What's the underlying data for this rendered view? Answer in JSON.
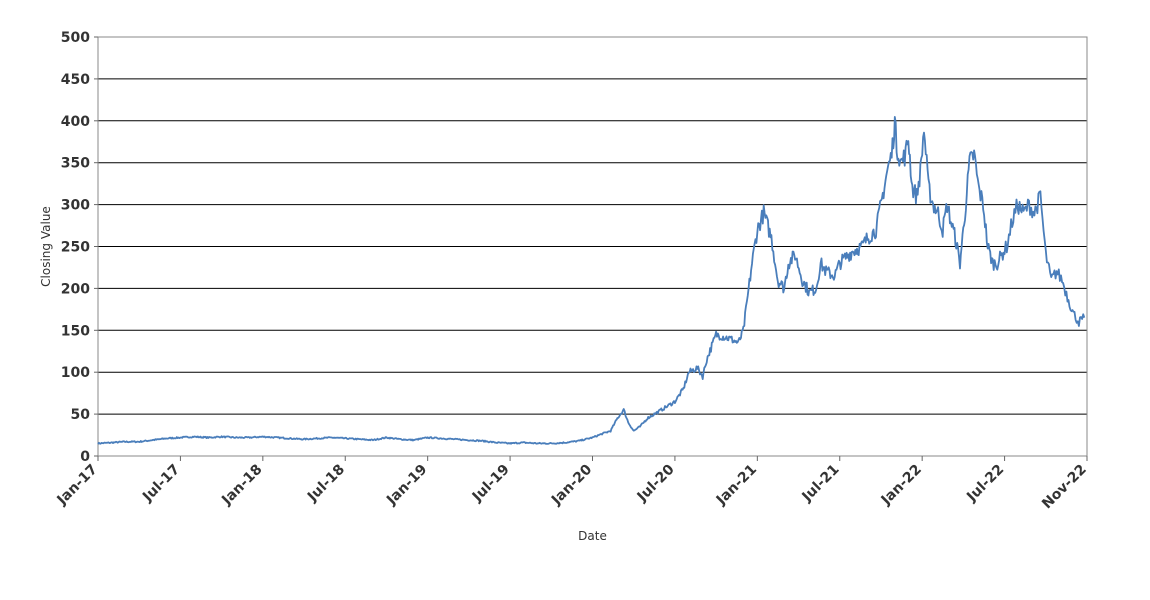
{
  "chart_data": {
    "type": "line",
    "title": "",
    "xlabel": "Date",
    "ylabel": "Closing Value",
    "ylim": [
      0,
      500
    ],
    "y_ticks": [
      0,
      50,
      100,
      150,
      200,
      250,
      300,
      350,
      400,
      450,
      500
    ],
    "x_ticks": [
      "Jan-17",
      "Jul-17",
      "Jan-18",
      "Jul-18",
      "Jan-19",
      "Jul-19",
      "Jan-20",
      "Jul-20",
      "Jan-21",
      "Jul-21",
      "Jan-22",
      "Jul-22",
      "Nov-22"
    ],
    "grid": "horizontal",
    "line_color": "#4a7ebb",
    "series": [
      {
        "x": [
          "2017-01-01",
          "2017-02-01",
          "2017-03-01",
          "2017-04-01",
          "2017-05-01",
          "2017-06-01",
          "2017-07-01",
          "2017-08-01",
          "2017-09-01",
          "2017-10-01",
          "2017-11-01",
          "2017-12-01",
          "2018-01-01",
          "2018-02-01",
          "2018-03-01",
          "2018-04-01",
          "2018-05-01",
          "2018-06-01",
          "2018-07-01",
          "2018-08-01",
          "2018-09-01",
          "2018-10-01",
          "2018-11-01",
          "2018-12-01",
          "2019-01-01",
          "2019-02-01",
          "2019-03-01",
          "2019-04-01",
          "2019-05-01",
          "2019-06-01",
          "2019-07-01",
          "2019-08-01",
          "2019-09-01",
          "2019-10-01",
          "2019-11-01",
          "2019-12-01",
          "2020-01-01",
          "2020-01-20",
          "2020-02-10",
          "2020-02-25",
          "2020-03-10",
          "2020-03-20",
          "2020-04-01",
          "2020-04-15",
          "2020-05-01",
          "2020-06-01",
          "2020-07-01",
          "2020-07-20",
          "2020-08-01",
          "2020-08-20",
          "2020-09-01",
          "2020-09-10",
          "2020-10-01",
          "2020-11-01",
          "2020-11-20",
          "2020-12-01",
          "2020-12-20",
          "2021-01-01",
          "2021-01-15",
          "2021-02-01",
          "2021-02-15",
          "2021-03-01",
          "2021-03-10",
          "2021-03-25",
          "2021-04-10",
          "2021-04-25",
          "2021-05-10",
          "2021-05-20",
          "2021-06-01",
          "2021-06-20",
          "2021-07-01",
          "2021-07-20",
          "2021-08-01",
          "2021-08-20",
          "2021-09-01",
          "2021-09-20",
          "2021-10-01",
          "2021-10-15",
          "2021-10-25",
          "2021-11-01",
          "2021-11-05",
          "2021-11-15",
          "2021-11-25",
          "2021-12-01",
          "2021-12-10",
          "2021-12-20",
          "2021-12-28",
          "2022-01-05",
          "2022-01-15",
          "2022-01-25",
          "2022-02-05",
          "2022-02-15",
          "2022-02-25",
          "2022-03-05",
          "2022-03-15",
          "2022-03-25",
          "2022-04-05",
          "2022-04-15",
          "2022-04-25",
          "2022-05-05",
          "2022-05-15",
          "2022-05-25",
          "2022-06-05",
          "2022-06-15",
          "2022-06-25",
          "2022-07-05",
          "2022-07-15",
          "2022-07-25",
          "2022-08-05",
          "2022-08-15",
          "2022-08-25",
          "2022-09-05",
          "2022-09-15",
          "2022-09-25",
          "2022-10-05",
          "2022-10-15",
          "2022-10-25",
          "2022-11-05",
          "2022-11-15",
          "2022-11-25"
        ],
        "values": [
          15,
          16,
          17,
          17,
          19,
          21,
          22,
          23,
          22,
          23,
          22,
          22,
          23,
          22,
          21,
          20,
          21,
          22,
          21,
          20,
          19,
          22,
          20,
          19,
          22,
          21,
          20,
          19,
          18,
          16,
          15,
          16,
          15,
          15,
          16,
          18,
          22,
          26,
          30,
          45,
          55,
          40,
          30,
          35,
          45,
          55,
          65,
          80,
          100,
          105,
          95,
          115,
          145,
          140,
          135,
          150,
          230,
          270,
          290,
          260,
          210,
          200,
          230,
          240,
          210,
          195,
          200,
          230,
          220,
          215,
          230,
          240,
          245,
          250,
          260,
          270,
          300,
          340,
          360,
          400,
          370,
          350,
          360,
          380,
          320,
          310,
          340,
          390,
          320,
          300,
          290,
          270,
          300,
          280,
          260,
          230,
          290,
          350,
          360,
          320,
          300,
          250,
          230,
          230,
          240,
          250,
          280,
          300,
          290,
          300,
          290,
          310,
          240,
          210,
          220,
          210,
          190,
          170,
          160,
          165
        ]
      }
    ]
  }
}
